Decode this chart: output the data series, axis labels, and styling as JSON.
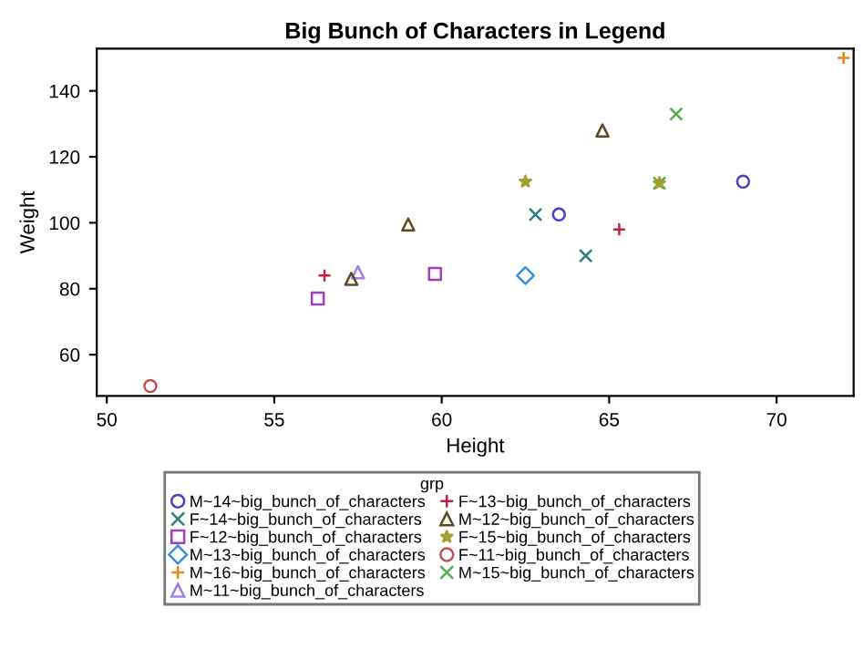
{
  "chart_data": {
    "type": "scatter",
    "title": "Big Bunch of Characters in Legend",
    "xlabel": "Height",
    "ylabel": "Weight",
    "legend_title": "grp",
    "legend": "bottom",
    "xlim": [
      49.7,
      72.3
    ],
    "xticks": [
      50,
      55,
      60,
      65,
      70
    ],
    "ylim": [
      47.5,
      152.8
    ],
    "yticks": [
      60,
      80,
      100,
      120,
      140
    ],
    "grid": false,
    "series": [
      {
        "name": "M~14~big_bunch_of_characters",
        "color": "#4a3fc0",
        "marker": "circle",
        "x": [
          69.0,
          63.5
        ],
        "values": [
          112.5,
          102.5
        ]
      },
      {
        "name": "F~14~big_bunch_of_characters",
        "color": "#2f7f7f",
        "marker": "cross",
        "x": [
          62.8,
          64.3
        ],
        "values": [
          102.5,
          90.0
        ]
      },
      {
        "name": "F~12~big_bunch_of_characters",
        "color": "#a040c0",
        "marker": "square",
        "x": [
          59.8,
          56.3
        ],
        "values": [
          84.5,
          77.0
        ]
      },
      {
        "name": "M~13~big_bunch_of_characters",
        "color": "#3a90e0",
        "marker": "diamond",
        "x": [
          62.5
        ],
        "values": [
          84.0
        ]
      },
      {
        "name": "M~16~big_bunch_of_characters",
        "color": "#e08a20",
        "marker": "plus",
        "x": [
          72.0
        ],
        "values": [
          150.0
        ]
      },
      {
        "name": "M~11~big_bunch_of_characters",
        "color": "#a080e0",
        "marker": "triangle",
        "x": [
          57.5
        ],
        "values": [
          85.0
        ]
      },
      {
        "name": "F~13~big_bunch_of_characters",
        "color": "#c02040",
        "marker": "plus",
        "x": [
          56.5,
          65.3
        ],
        "values": [
          84.0,
          98.0
        ]
      },
      {
        "name": "M~12~big_bunch_of_characters",
        "color": "#5a4a20",
        "marker": "triangle",
        "x": [
          57.3,
          59.0,
          64.8
        ],
        "values": [
          83.0,
          99.5,
          128.0
        ]
      },
      {
        "name": "F~15~big_bunch_of_characters",
        "color": "#a0a030",
        "marker": "star",
        "x": [
          62.5,
          66.5
        ],
        "values": [
          112.5,
          112.0
        ]
      },
      {
        "name": "F~11~big_bunch_of_characters",
        "color": "#c05050",
        "marker": "circle",
        "x": [
          51.3
        ],
        "values": [
          50.5
        ]
      },
      {
        "name": "M~15~big_bunch_of_characters",
        "color": "#50b050",
        "marker": "cross",
        "x": [
          67.0,
          66.5
        ],
        "values": [
          133.0,
          112.0
        ]
      }
    ]
  }
}
